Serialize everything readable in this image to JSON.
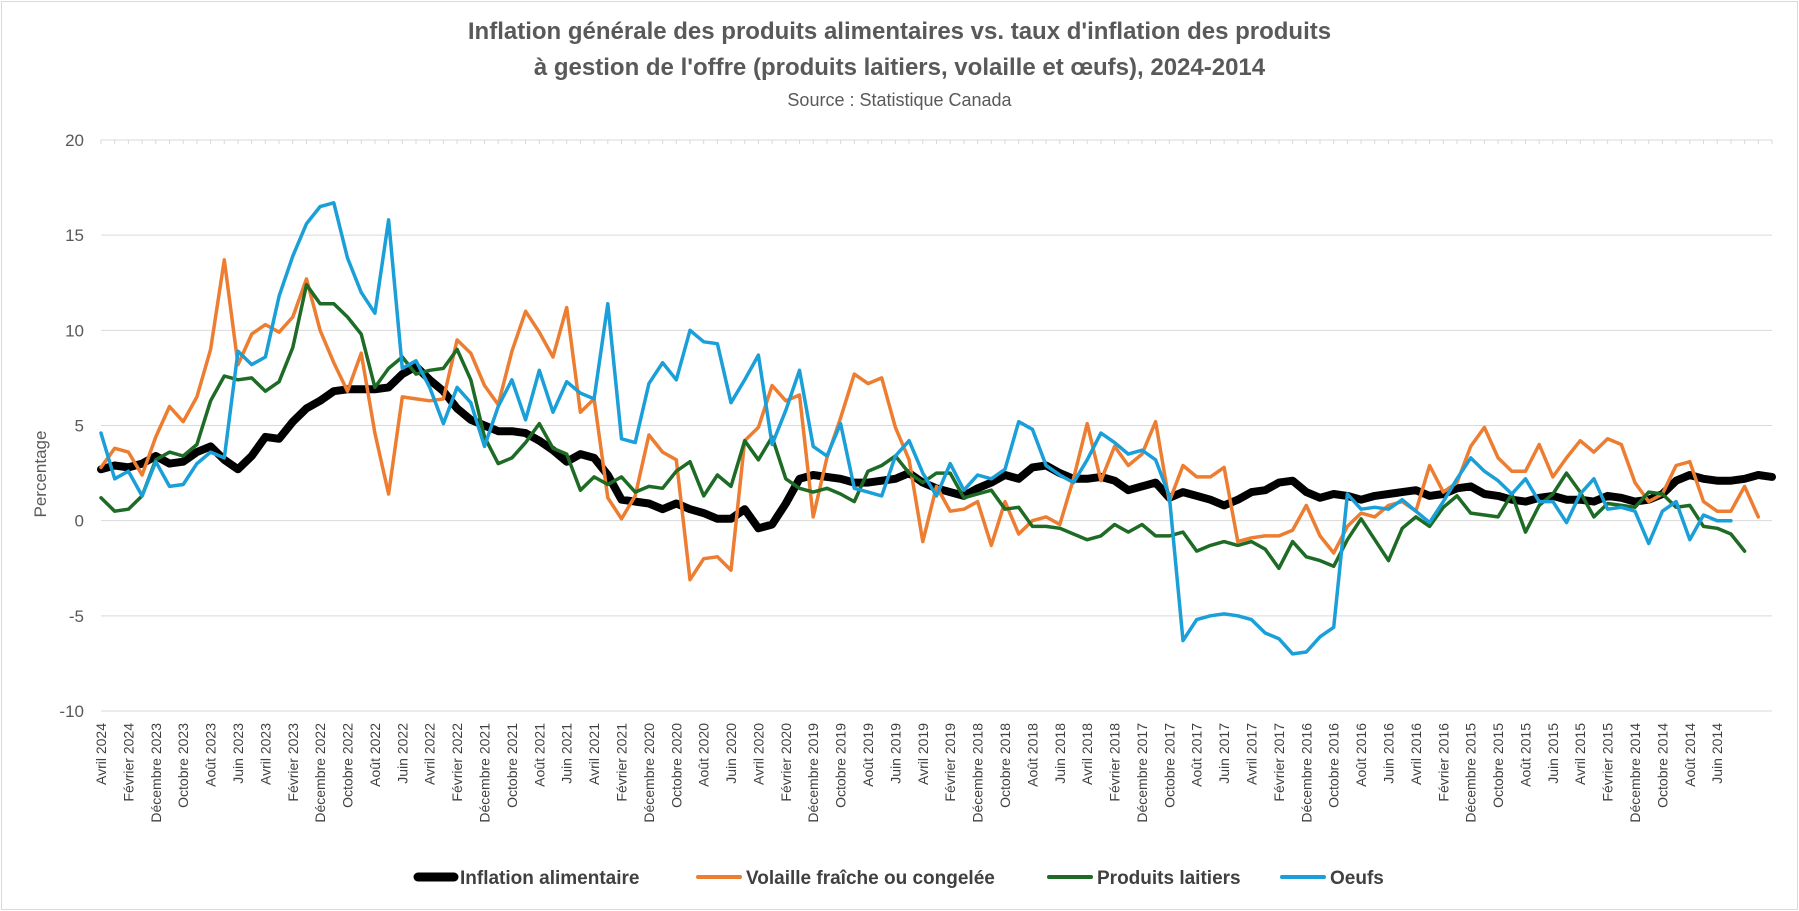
{
  "chart_data": {
    "type": "line",
    "title_line1": "Inflation générale des produits alimentaires vs. taux d'inflation des produits",
    "title_line2": "à gestion de l'offre (produits laitiers, volaille et œufs), 2024-2014",
    "subtitle": "Source : Statistique Canada",
    "ylabel": "Percentage",
    "xlabel": "",
    "ylim": [
      -10,
      20
    ],
    "yticks": [
      20,
      15,
      10,
      5,
      0,
      -5,
      -10
    ],
    "grid": true,
    "legend_position": "bottom",
    "x_labels": [
      "Avril 2024",
      "Février 2024",
      "Décembre 2023",
      "Octobre 2023",
      "Août 2023",
      "Juin 2023",
      "Avril 2023",
      "Février 2023",
      "Décembre 2022",
      "Octobre 2022",
      "Août 2022",
      "Juin 2022",
      "Avril 2022",
      "Février 2022",
      "Décembre 2021",
      "Octobre 2021",
      "Août 2021",
      "Juin 2021",
      "Avril 2021",
      "Février 2021",
      "Décembre 2020",
      "Octobre 2020",
      "Août 2020",
      "Juin 2020",
      "Avril 2020",
      "Février 2020",
      "Décembre 2019",
      "Octobre 2019",
      "Août 2019",
      "Juin 2019",
      "Avril 2019",
      "Février 2019",
      "Décembre 2018",
      "Octobre 2018",
      "Août 2018",
      "Juin 2018",
      "Avril 2018",
      "Février 2018",
      "Décembre 2017",
      "Octobre 2017",
      "Août 2017",
      "Juin 2017",
      "Avril 2017",
      "Février 2017",
      "Décembre 2016",
      "Octobre 2016",
      "Août 2016",
      "Juin 2016",
      "Avril 2016",
      "Février 2016",
      "Décembre 2015",
      "Octobre 2015",
      "Août 2015",
      "Juin 2015",
      "Avril 2015",
      "Février 2015",
      "Décembre 2014",
      "Octobre 2014",
      "Août 2014",
      "Juin 2014"
    ],
    "series": [
      {
        "name": "Inflation alimentaire",
        "color": "#000000",
        "values": [
          2.7,
          2.9,
          2.8,
          3.0,
          3.4,
          3.0,
          3.1,
          3.6,
          3.9,
          3.2,
          2.7,
          3.4,
          4.4,
          4.3,
          5.2,
          5.9,
          6.3,
          6.8,
          6.9,
          6.9,
          6.9,
          7.0,
          7.7,
          8.1,
          7.4,
          6.8,
          5.9,
          5.3,
          5.0,
          4.7,
          4.7,
          4.6,
          4.2,
          3.7,
          3.1,
          3.5,
          3.3,
          2.4,
          1.1,
          1.0,
          0.9,
          0.6,
          0.9,
          0.6,
          0.4,
          0.1,
          0.1,
          0.6,
          -0.4,
          -0.2,
          0.9,
          2.2,
          2.4,
          2.3,
          2.2,
          2.0,
          2.0,
          2.1,
          2.2,
          2.5,
          2.0,
          1.7,
          1.5,
          1.3,
          1.7,
          2.0,
          2.4,
          2.2,
          2.8,
          2.9,
          2.5,
          2.2,
          2.2,
          2.3,
          2.1,
          1.6,
          1.8,
          2.0,
          1.2,
          1.5,
          1.3,
          1.1,
          0.8,
          1.1,
          1.5,
          1.6,
          2.0,
          2.1,
          1.5,
          1.2,
          1.4,
          1.3,
          1.1,
          1.3,
          1.4,
          1.5,
          1.6,
          1.3,
          1.4,
          1.7,
          1.8,
          1.4,
          1.3,
          1.1,
          1.0,
          1.2,
          1.3,
          1.1,
          1.1,
          1.0,
          1.3,
          1.2,
          1.0,
          1.1,
          1.4,
          2.1,
          2.4,
          2.2,
          2.1,
          2.1,
          2.2,
          2.4,
          2.3
        ]
      },
      {
        "name": "Volaille fraîche ou congelée",
        "color": "#ED7D31",
        "values": [
          2.8,
          3.8,
          3.6,
          2.4,
          4.4,
          6.0,
          5.2,
          6.5,
          9.0,
          13.7,
          8.2,
          9.8,
          10.3,
          9.9,
          10.7,
          12.7,
          10.0,
          8.3,
          6.8,
          8.8,
          4.6,
          1.4,
          6.5,
          6.4,
          6.3,
          6.4,
          9.5,
          8.8,
          7.1,
          6.1,
          8.9,
          11.0,
          9.9,
          8.6,
          11.2,
          5.7,
          6.4,
          1.2,
          0.1,
          1.3,
          4.5,
          3.6,
          3.2,
          -3.1,
          -2.0,
          -1.9,
          -2.6,
          4.2,
          4.9,
          7.1,
          6.3,
          6.6,
          0.2,
          3.3,
          5.4,
          7.7,
          7.2,
          7.5,
          4.9,
          3.2,
          -1.1,
          1.8,
          0.5,
          0.6,
          1.0,
          -1.3,
          1.0,
          -0.7,
          0.0,
          0.2,
          -0.2,
          2.2,
          5.1,
          2.1,
          3.9,
          2.9,
          3.5,
          5.2,
          1.0,
          2.9,
          2.3,
          2.3,
          2.8,
          -1.1,
          -0.9,
          -0.8,
          -0.8,
          -0.5,
          0.8,
          -0.8,
          -1.7,
          -0.3,
          0.4,
          0.2,
          0.8,
          1.0,
          0.5,
          2.9,
          1.5,
          2.0,
          3.9,
          4.9,
          3.3,
          2.6,
          2.6,
          4.0,
          2.3,
          3.3,
          4.2,
          3.6,
          4.3,
          4.0,
          2.0,
          1.0,
          1.4,
          2.9,
          3.1,
          1.0,
          0.5,
          0.5,
          1.8,
          0.2
        ]
      },
      {
        "name": "Produits laitiers",
        "color": "#1E6B26",
        "values": [
          1.2,
          0.5,
          0.6,
          1.3,
          3.2,
          3.6,
          3.4,
          4.0,
          6.3,
          7.6,
          7.4,
          7.5,
          6.8,
          7.3,
          9.1,
          12.4,
          11.4,
          11.4,
          10.7,
          9.8,
          7.0,
          8.0,
          8.6,
          7.7,
          7.9,
          8.0,
          9.0,
          7.4,
          4.4,
          3.0,
          3.3,
          4.1,
          5.1,
          3.8,
          3.5,
          1.6,
          2.3,
          1.9,
          2.3,
          1.5,
          1.8,
          1.7,
          2.6,
          3.1,
          1.3,
          2.4,
          1.8,
          4.2,
          3.2,
          4.4,
          2.2,
          1.7,
          1.5,
          1.7,
          1.4,
          1.0,
          2.6,
          2.9,
          3.4,
          2.5,
          2.0,
          2.5,
          2.5,
          1.2,
          1.4,
          1.6,
          0.6,
          0.7,
          -0.3,
          -0.3,
          -0.4,
          -0.7,
          -1.0,
          -0.8,
          -0.2,
          -0.6,
          -0.2,
          -0.8,
          -0.8,
          -0.6,
          -1.6,
          -1.3,
          -1.1,
          -1.3,
          -1.1,
          -1.5,
          -2.5,
          -1.1,
          -1.9,
          -2.1,
          -2.4,
          -1.0,
          0.1,
          -1.0,
          -2.1,
          -0.4,
          0.2,
          -0.3,
          0.7,
          1.3,
          0.4,
          0.3,
          0.2,
          1.4,
          -0.6,
          0.8,
          1.4,
          2.5,
          1.5,
          0.2,
          0.9,
          0.8,
          0.7,
          1.5,
          1.4,
          0.7,
          0.8,
          -0.3,
          -0.4,
          -0.7,
          -1.6
        ]
      },
      {
        "name": "Oeufs",
        "color": "#1A9FD8",
        "values": [
          4.6,
          2.2,
          2.6,
          1.3,
          3.1,
          1.8,
          1.9,
          3.0,
          3.6,
          3.3,
          8.9,
          8.2,
          8.6,
          11.8,
          13.9,
          15.6,
          16.5,
          16.7,
          13.8,
          12.0,
          10.9,
          15.8,
          8.0,
          8.4,
          7.0,
          5.1,
          7.0,
          6.2,
          3.9,
          6.0,
          7.4,
          5.3,
          7.9,
          5.7,
          7.3,
          6.7,
          6.4,
          11.4,
          4.3,
          4.1,
          7.2,
          8.3,
          7.4,
          10.0,
          9.4,
          9.3,
          6.2,
          7.4,
          8.7,
          4.0,
          5.8,
          7.9,
          3.9,
          3.4,
          5.1,
          1.7,
          1.5,
          1.3,
          3.4,
          4.2,
          2.5,
          1.3,
          3.0,
          1.6,
          2.4,
          2.2,
          2.7,
          5.2,
          4.8,
          2.9,
          2.4,
          2.0,
          3.2,
          4.6,
          4.1,
          3.5,
          3.7,
          3.2,
          1.3,
          -6.3,
          -5.2,
          -5.0,
          -4.9,
          -5.0,
          -5.2,
          -5.9,
          -6.2,
          -7.0,
          -6.9,
          -6.1,
          -5.6,
          1.4,
          0.6,
          0.7,
          0.6,
          1.1,
          0.5,
          -0.1,
          1.0,
          2.2,
          3.3,
          2.6,
          2.1,
          1.4,
          2.2,
          1.0,
          1.0,
          -0.1,
          1.4,
          2.2,
          0.6,
          0.7,
          0.5,
          -1.2,
          0.5,
          1.0,
          -1.0,
          0.3,
          0.0,
          0.0
        ]
      }
    ]
  }
}
